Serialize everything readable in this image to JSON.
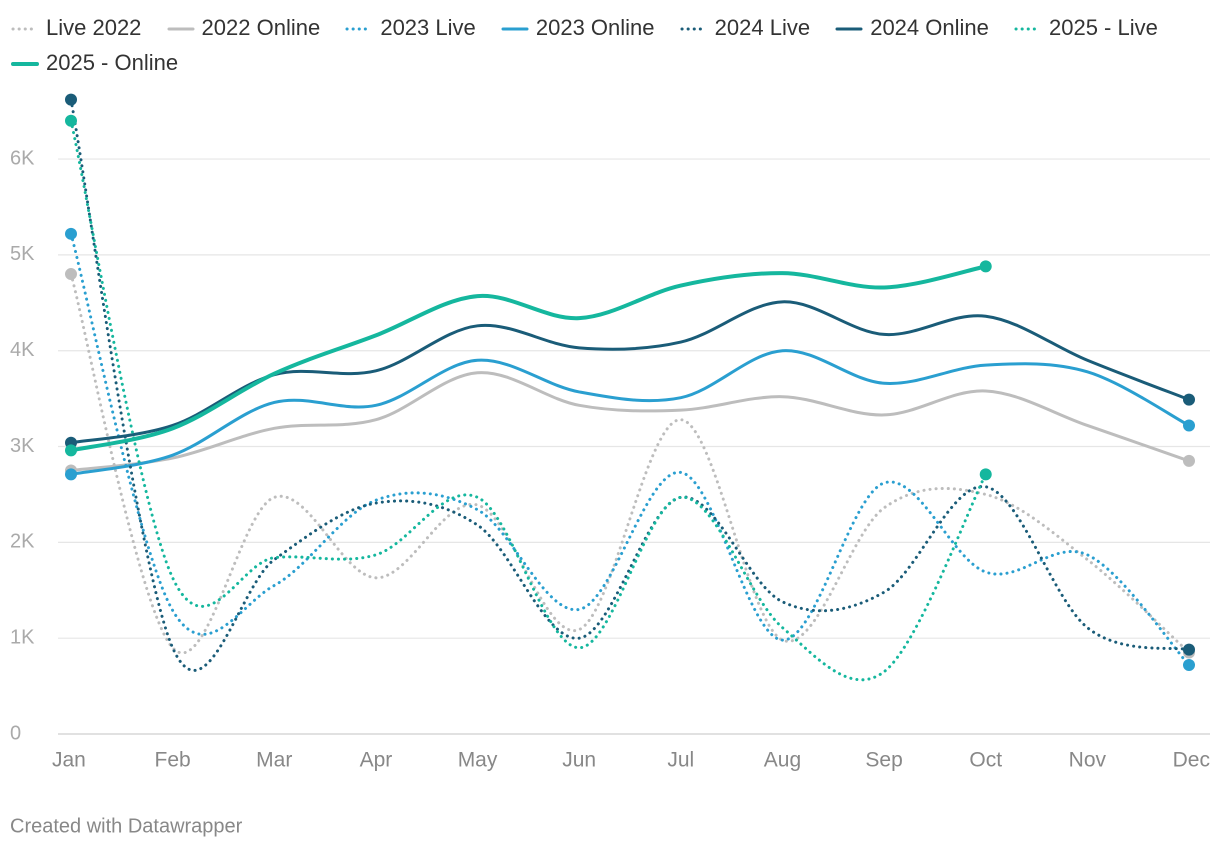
{
  "chart_data": {
    "type": "line",
    "categories": [
      "Jan",
      "Feb",
      "Mar",
      "Apr",
      "May",
      "Jun",
      "Jul",
      "Aug",
      "Sep",
      "Oct",
      "Nov",
      "Dec"
    ],
    "series": [
      {
        "name": "Live 2022",
        "color": "#bdbdbd",
        "style": "dotted",
        "values": [
          4800,
          900,
          2470,
          1630,
          2390,
          1090,
          3280,
          980,
          2360,
          2500,
          1820,
          850
        ]
      },
      {
        "name": "2022 Online",
        "color": "#bdbdbd",
        "style": "solid",
        "values": [
          2750,
          2880,
          3190,
          3280,
          3770,
          3430,
          3380,
          3520,
          3330,
          3580,
          3220,
          2850
        ]
      },
      {
        "name": "2023 Live",
        "color": "#2a9fd0",
        "style": "dotted",
        "values": [
          5220,
          1290,
          1550,
          2440,
          2340,
          1300,
          2730,
          980,
          2620,
          1690,
          1870,
          720
        ]
      },
      {
        "name": "2023 Online",
        "color": "#2a9fd0",
        "style": "solid",
        "values": [
          2710,
          2910,
          3460,
          3430,
          3900,
          3570,
          3510,
          4000,
          3660,
          3850,
          3780,
          3220
        ]
      },
      {
        "name": "2024 Live",
        "color": "#1a5c78",
        "style": "dotted",
        "values": [
          6620,
          900,
          1820,
          2410,
          2180,
          1000,
          2470,
          1380,
          1480,
          2580,
          1110,
          880
        ]
      },
      {
        "name": "2024 Online",
        "color": "#1a5c78",
        "style": "solid",
        "values": [
          3040,
          3220,
          3750,
          3790,
          4260,
          4030,
          4090,
          4510,
          4170,
          4360,
          3900,
          3490
        ]
      },
      {
        "name": "2025 - Live",
        "color": "#15b79e",
        "style": "dotted",
        "values": [
          6400,
          1630,
          1840,
          1870,
          2470,
          900,
          2470,
          1110,
          650,
          2710,
          null,
          null
        ]
      },
      {
        "name": "2025 - Online",
        "color": "#15b79e",
        "style": "solid",
        "width": 4,
        "values": [
          2960,
          3190,
          3760,
          4160,
          4570,
          4340,
          4680,
          4810,
          4660,
          4880,
          null,
          null
        ]
      }
    ],
    "ylim": [
      0,
      6700
    ],
    "yticks": [
      {
        "value": 0,
        "label": "0"
      },
      {
        "value": 1000,
        "label": "1K"
      },
      {
        "value": 2000,
        "label": "2K"
      },
      {
        "value": 3000,
        "label": "3K"
      },
      {
        "value": 4000,
        "label": "4K"
      },
      {
        "value": 5000,
        "label": "5K"
      },
      {
        "value": 6000,
        "label": "6K"
      }
    ],
    "grid": true,
    "footer": "Created with Datawrapper"
  }
}
